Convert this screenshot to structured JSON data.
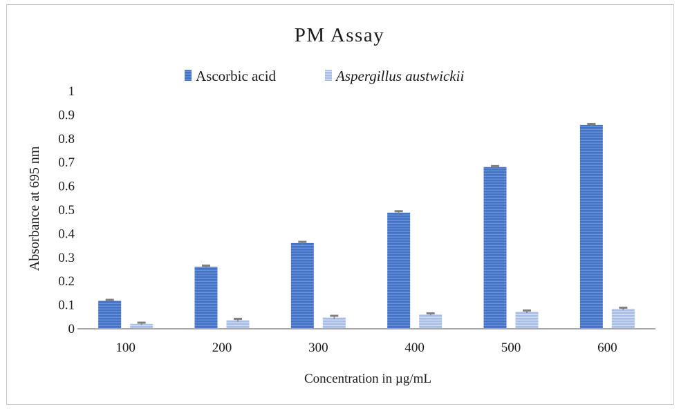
{
  "chart_data": {
    "type": "bar",
    "title": "PM Assay",
    "xlabel": "Concentration in µg/mL",
    "ylabel": "Absorbance at 695 nm",
    "categories": [
      "100",
      "200",
      "300",
      "400",
      "500",
      "600"
    ],
    "ylim": [
      0,
      1
    ],
    "yticks": [
      "0",
      "0.1",
      "0.2",
      "0.3",
      "0.4",
      "0.5",
      "0.6",
      "0.7",
      "0.8",
      "0.9",
      "1"
    ],
    "grid": false,
    "legend_position": "top",
    "series": [
      {
        "name": "Ascorbic acid",
        "values": [
          0.115,
          0.258,
          0.358,
          0.486,
          0.678,
          0.855
        ],
        "errors": [
          0.004,
          0.005,
          0.005,
          0.006,
          0.004,
          0.004
        ],
        "color": "#4472c4",
        "italic": false
      },
      {
        "name": "Aspergillus austwickii",
        "values": [
          0.018,
          0.033,
          0.045,
          0.058,
          0.069,
          0.081
        ],
        "errors": [
          0.005,
          0.006,
          0.007,
          0.004,
          0.005,
          0.005
        ],
        "color": "#a9bce3",
        "italic": true
      }
    ]
  }
}
